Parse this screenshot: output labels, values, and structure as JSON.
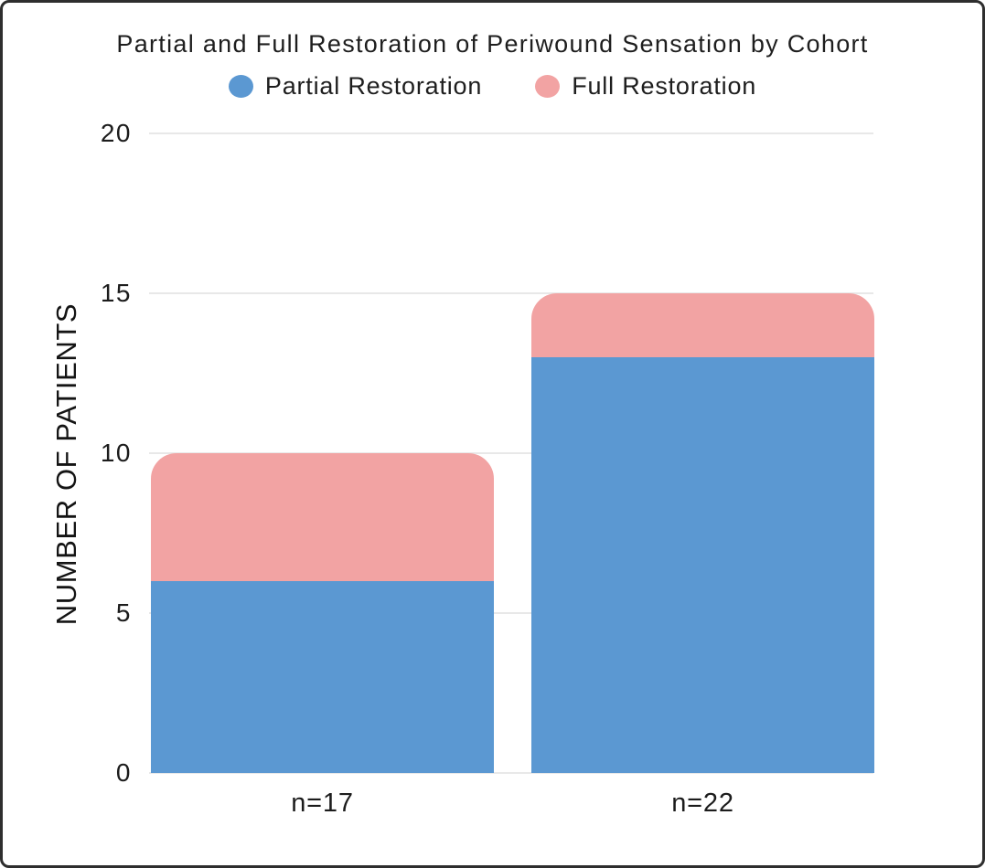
{
  "chart_data": {
    "type": "bar",
    "stacked": true,
    "title": "Partial and Full Restoration of Periwound Sensation by Cohort",
    "categories": [
      "n=17",
      "n=22"
    ],
    "series": [
      {
        "name": "Partial Restoration",
        "color": "#5b98d2",
        "values": [
          6,
          13
        ]
      },
      {
        "name": "Full Restoration",
        "color": "#f2a3a3",
        "values": [
          4,
          2
        ]
      }
    ],
    "xlabel": "",
    "ylabel": "NUMBER OF PATIENTS",
    "ylim": [
      0,
      20
    ],
    "yticks": [
      0,
      5,
      10,
      15,
      20
    ],
    "grid": true,
    "legend_position": "top",
    "grid_color": "#e8e8e8",
    "text_color": "#1e1e1e",
    "background_color": "#ffffff",
    "border_color": "#2e2e2e"
  }
}
